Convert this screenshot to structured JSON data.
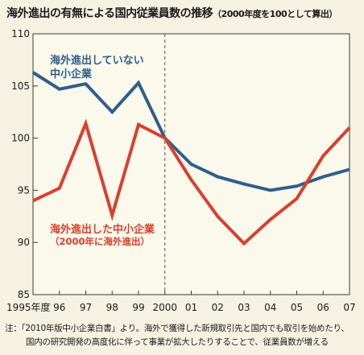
{
  "title": "海外進出の有無による国内従業員数の推移",
  "subtitle": "（2000年度を100として算出）",
  "chart_data": {
    "type": "line",
    "x": [
      "1995年度",
      "96",
      "97",
      "98",
      "99",
      "2000",
      "01",
      "02",
      "03",
      "04",
      "05",
      "06",
      "07"
    ],
    "ylim": [
      85,
      110
    ],
    "yticks": [
      85,
      90,
      95,
      100,
      105,
      110
    ],
    "reference_line_x": "2000",
    "grid": false,
    "series": [
      {
        "name": "海外進出していない中小企業",
        "label_lines": [
          "海外進出していない",
          "中小企業"
        ],
        "color": "#2f5f8a",
        "values": [
          106.3,
          104.7,
          105.2,
          102.5,
          105.3,
          100.0,
          97.5,
          96.3,
          95.6,
          95.0,
          95.4,
          96.3,
          97.0
        ]
      },
      {
        "name": "海外進出した中小企業",
        "label_lines": [
          "海外進出した中小企業",
          "（2000年に海外進出）"
        ],
        "color": "#d8402e",
        "values": [
          94.0,
          95.2,
          101.4,
          92.6,
          101.3,
          100.0,
          96.0,
          92.5,
          89.9,
          92.2,
          94.2,
          98.3,
          101.0
        ]
      }
    ]
  },
  "note": {
    "line1": "注：「2010年版中小企業白書」より。海外で獲得した新規取引先と国内でも取引を始めたり、",
    "line2": "国内の研究開発の高度化に伴って事業が拡大したりすることで、従業員数が増える"
  }
}
